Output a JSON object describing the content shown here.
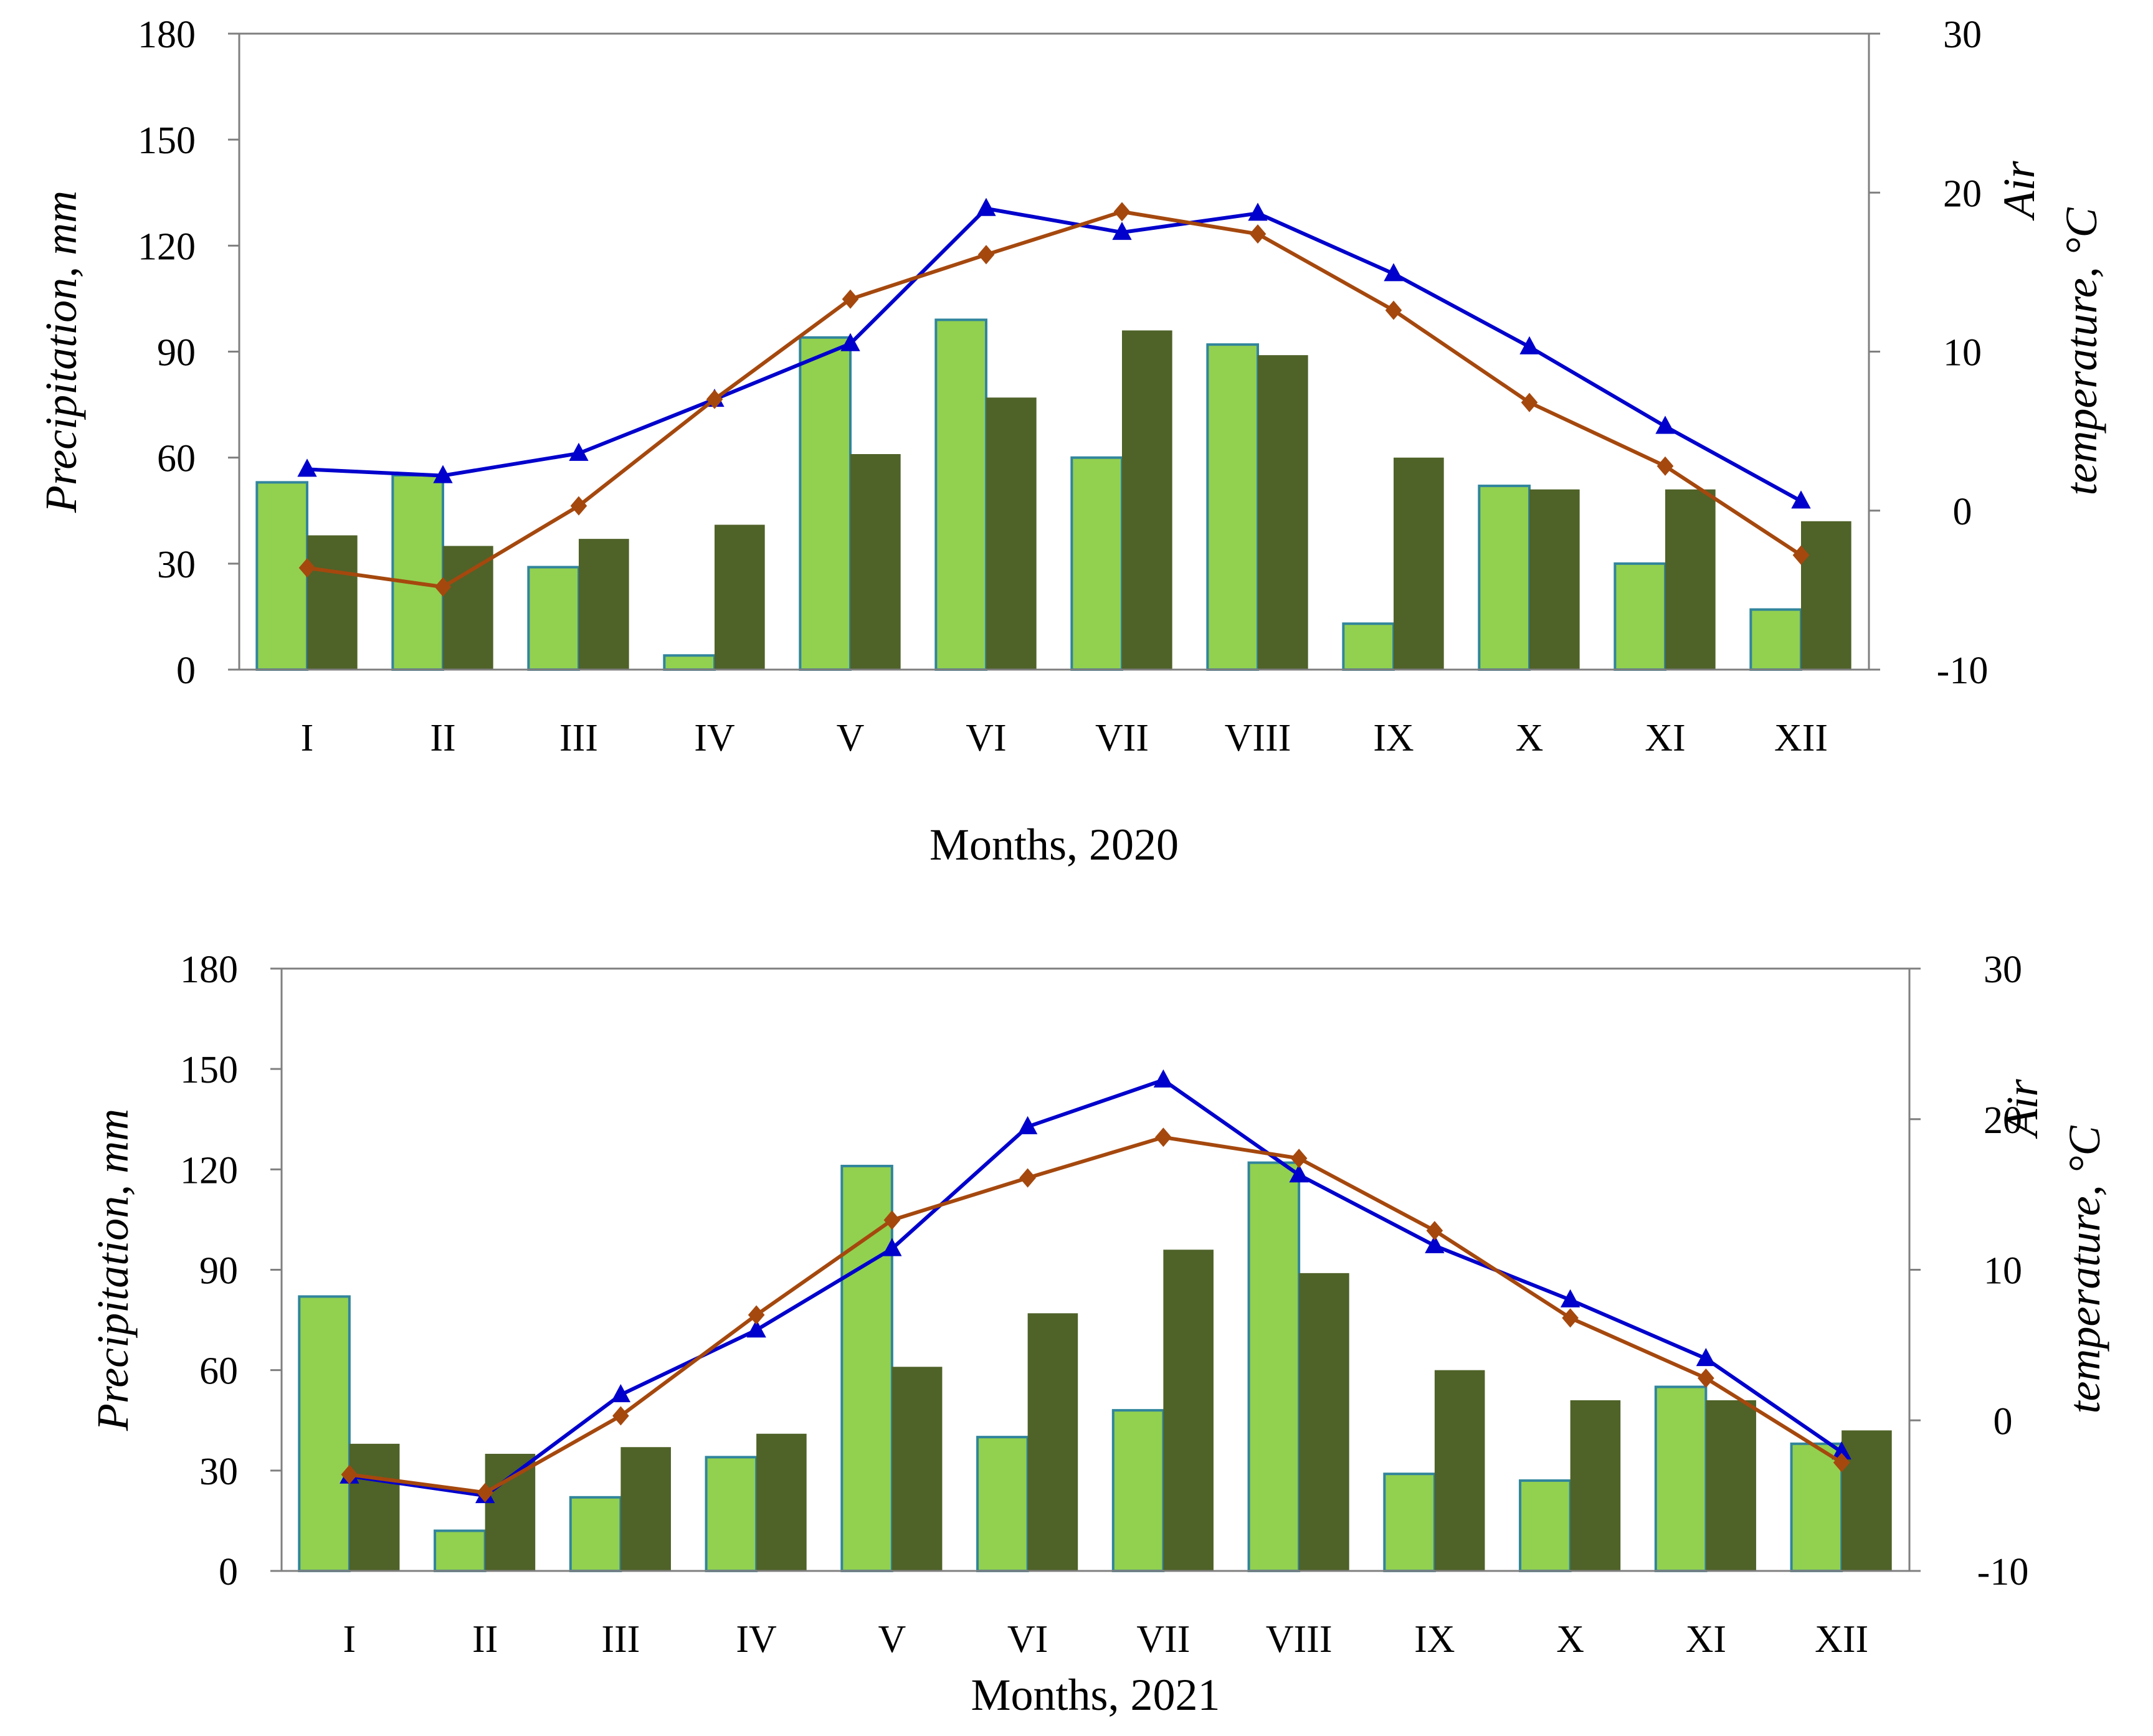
{
  "colors": {
    "precip_bar": "#92d050",
    "precip_bar_edge": "#31859c",
    "normal_bar": "#4f6228",
    "temp_line": "#0000cc",
    "normal_temp_line": "#a5480e",
    "axis": "#7f7f7f"
  },
  "chart_data": [
    {
      "type": "bar+line",
      "xlabel": "Months, 2020",
      "ylabel": "Precipitation, mm",
      "y2label_line1": "Air",
      "y2label_line2": "temperature, °C",
      "categories": [
        "I",
        "II",
        "III",
        "IV",
        "V",
        "VI",
        "VII",
        "VIII",
        "IX",
        "X",
        "XI",
        "XII"
      ],
      "ylim": [
        0,
        180
      ],
      "yticks": [
        0,
        30,
        60,
        90,
        120,
        150,
        180
      ],
      "y2lim": [
        -10,
        30
      ],
      "y2ticks": [
        -10,
        0,
        10,
        20,
        30
      ],
      "grid": false,
      "bars": [
        {
          "values": [
            53,
            55,
            29,
            4,
            94,
            99,
            60,
            92,
            13,
            52,
            30,
            17
          ]
        },
        {
          "values": [
            38,
            35,
            37,
            41,
            61,
            77,
            96,
            89,
            60,
            51,
            51,
            42
          ]
        }
      ],
      "lines": [
        {
          "marker": "triangle",
          "values": [
            2.6,
            2.2,
            3.6,
            7.0,
            10.5,
            19.0,
            17.5,
            18.7,
            14.9,
            10.3,
            5.3,
            0.6
          ]
        },
        {
          "marker": "diamond",
          "values": [
            -3.6,
            -4.8,
            0.3,
            7.0,
            13.3,
            16.1,
            18.8,
            17.4,
            12.6,
            6.8,
            2.8,
            -2.8
          ]
        }
      ]
    },
    {
      "type": "bar+line",
      "xlabel": "Months, 2021",
      "ylabel": "Precipitation, mm",
      "y2label_line1": "Air",
      "y2label_line2": "temperature, °C",
      "categories": [
        "I",
        "II",
        "III",
        "IV",
        "V",
        "VI",
        "VII",
        "VIII",
        "IX",
        "X",
        "XI",
        "XII"
      ],
      "ylim": [
        0,
        180
      ],
      "yticks": [
        0,
        30,
        60,
        90,
        120,
        150,
        180
      ],
      "y2lim": [
        -10,
        30
      ],
      "y2ticks": [
        -10,
        0,
        10,
        20,
        30
      ],
      "grid": false,
      "bars": [
        {
          "values": [
            82,
            12,
            22,
            34,
            121,
            40,
            48,
            122,
            29,
            27,
            55,
            38
          ]
        },
        {
          "values": [
            38,
            35,
            37,
            41,
            61,
            77,
            96,
            89,
            60,
            51,
            51,
            42
          ]
        }
      ],
      "lines": [
        {
          "marker": "triangle",
          "values": [
            -3.7,
            -5.0,
            1.7,
            6.0,
            11.4,
            19.5,
            22.6,
            16.3,
            11.6,
            8.0,
            4.1,
            -2.1
          ]
        },
        {
          "marker": "diamond",
          "values": [
            -3.6,
            -4.8,
            0.3,
            7.0,
            13.3,
            16.1,
            18.8,
            17.4,
            12.6,
            6.8,
            2.8,
            -2.8
          ]
        }
      ]
    }
  ]
}
